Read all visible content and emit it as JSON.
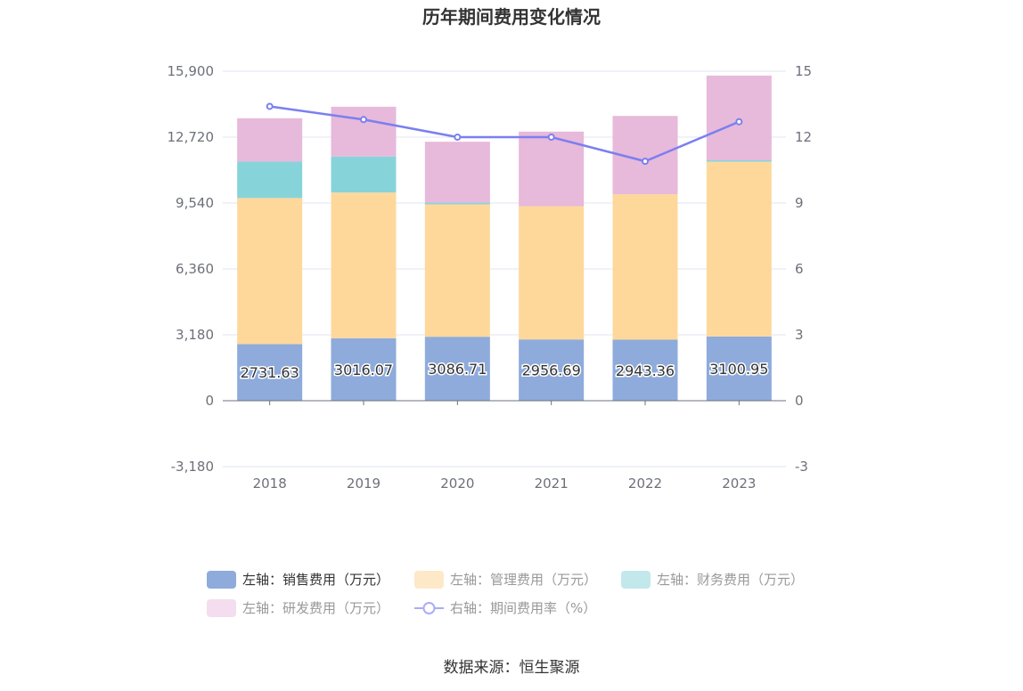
{
  "chart_data": {
    "type": "bar",
    "title": "历年期间费用变化情况",
    "categories": [
      "2018",
      "2019",
      "2020",
      "2021",
      "2022",
      "2023"
    ],
    "y_left": {
      "min": -3180,
      "max": 15900,
      "ticks": [
        -3180,
        0,
        3180,
        6360,
        9540,
        12720,
        15900
      ],
      "tick_labels": [
        "-3,180",
        "0",
        "3,180",
        "6,360",
        "9,540",
        "12,720",
        "15,900"
      ]
    },
    "y_right": {
      "min": -3,
      "max": 15,
      "ticks": [
        -3,
        0,
        3,
        6,
        9,
        12,
        15
      ],
      "tick_labels": [
        "-3",
        "0",
        "3",
        "6",
        "9",
        "12",
        "15"
      ]
    },
    "series": [
      {
        "name": "左轴：销售费用（万元）",
        "kind": "bar",
        "axis": "left",
        "color": "#8eabdb",
        "values": [
          2731.63,
          3016.07,
          3086.71,
          2956.69,
          2943.36,
          3100.95
        ],
        "labels": [
          "2731.63",
          "3016.07",
          "3086.71",
          "2956.69",
          "2943.36",
          "3100.95"
        ]
      },
      {
        "name": "左轴：管理费用（万元）",
        "kind": "bar",
        "axis": "left",
        "color": "#fed89b",
        "values": [
          7050,
          7030,
          6390,
          6430,
          7020,
          8430
        ]
      },
      {
        "name": "左轴：财务费用（万元）",
        "kind": "bar",
        "axis": "left",
        "color": "#86d4da",
        "values": [
          1760,
          1740,
          80,
          0,
          0,
          70
        ]
      },
      {
        "name": "左轴：研发费用（万元）",
        "kind": "bar",
        "axis": "left",
        "color": "#e7b9da",
        "values": [
          2090,
          2400,
          2940,
          3600,
          3780,
          4090
        ]
      },
      {
        "name": "右轴：期间费用率（%）",
        "kind": "line",
        "axis": "right",
        "color": "#7b7ff0",
        "values": [
          13.4,
          12.8,
          12.0,
          12.0,
          10.9,
          12.7
        ]
      }
    ],
    "grid": true,
    "legend_position": "bottom"
  },
  "source_label": "数据来源：恒生聚源"
}
